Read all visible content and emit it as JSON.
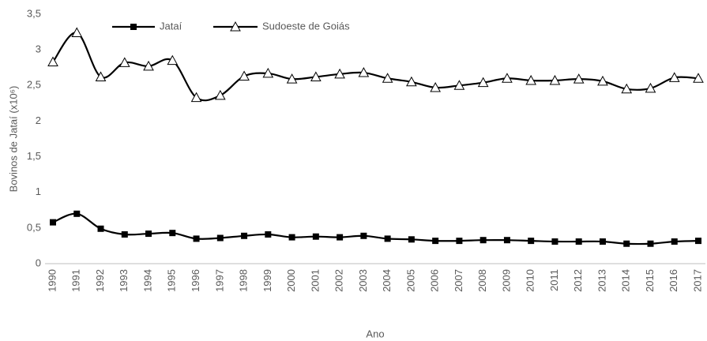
{
  "chart_data": {
    "type": "line",
    "y_label": "Bovinos de Jataí (x10⁶)",
    "x_label": "Ano",
    "categories": [
      "1990",
      "1991",
      "1992",
      "1993",
      "1994",
      "1995",
      "1996",
      "1997",
      "1998",
      "1999",
      "2000",
      "2001",
      "2002",
      "2003",
      "2004",
      "2005",
      "2006",
      "2007",
      "2008",
      "2009",
      "2010",
      "2011",
      "2012",
      "2013",
      "2014",
      "2015",
      "2016",
      "2017"
    ],
    "series": [
      {
        "name": "Jataí",
        "color": "#000000",
        "marker": "square",
        "values": [
          0.58,
          0.7,
          0.49,
          0.41,
          0.42,
          0.43,
          0.35,
          0.36,
          0.39,
          0.41,
          0.37,
          0.38,
          0.37,
          0.39,
          0.35,
          0.34,
          0.32,
          0.32,
          0.33,
          0.33,
          0.32,
          0.31,
          0.31,
          0.31,
          0.28,
          0.28,
          0.31,
          0.32
        ]
      },
      {
        "name": "Sudoeste de Goiás",
        "color": "#000000",
        "marker": "triangle",
        "values": [
          2.83,
          3.24,
          2.62,
          2.82,
          2.77,
          2.85,
          2.33,
          2.36,
          2.63,
          2.67,
          2.59,
          2.62,
          2.66,
          2.68,
          2.6,
          2.55,
          2.47,
          2.5,
          2.54,
          2.6,
          2.57,
          2.57,
          2.59,
          2.56,
          2.45,
          2.46,
          2.61,
          2.6
        ]
      }
    ],
    "ylim": [
      0,
      3.5
    ],
    "yticks": [
      0,
      {
        "value": 0.5,
        "label": "0,5"
      },
      1,
      {
        "value": 1.5,
        "label": "1,5"
      },
      2,
      {
        "value": 2.5,
        "label": "2,5"
      },
      3,
      {
        "value": 3.5,
        "label": "3,5"
      }
    ],
    "grid": false,
    "legend": "top"
  }
}
